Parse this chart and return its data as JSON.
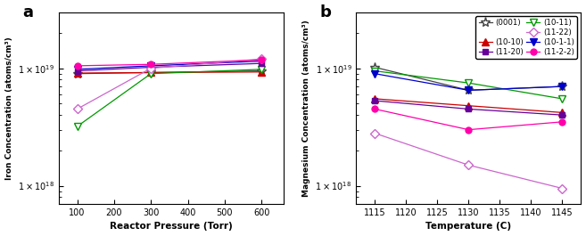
{
  "panel_a": {
    "xlabel": "Reactor Pressure (Torr)",
    "ylabel": "Iron Concentration (atoms/cm³)",
    "xdata": [
      100,
      300,
      600
    ],
    "series": [
      {
        "label": "(0001)",
        "color": "#444444",
        "marker": "*",
        "markersize": 8,
        "markerfacecolor": "white",
        "markeredgecolor": "#444444",
        "linestyle": "-",
        "y": [
          9e+18,
          9.2e+18,
          9.5e+18
        ]
      },
      {
        "label": "(10-10)",
        "color": "#cc0000",
        "marker": "^",
        "markersize": 6,
        "markerfacecolor": "#cc0000",
        "markeredgecolor": "#cc0000",
        "linestyle": "-",
        "y": [
          9.1e+18,
          9.2e+18,
          9.3e+18
        ]
      },
      {
        "label": "(10-11)",
        "color": "#009900",
        "marker": "v",
        "markersize": 6,
        "markerfacecolor": "white",
        "markeredgecolor": "#009900",
        "linestyle": "-",
        "y": [
          3.2e+18,
          9e+18,
          9.8e+18
        ]
      },
      {
        "label": "(10-1-1)",
        "color": "#0000cc",
        "marker": "v",
        "markersize": 6,
        "markerfacecolor": "#0000cc",
        "markeredgecolor": "#0000cc",
        "linestyle": "-",
        "y": [
          9.8e+18,
          1.05e+19,
          1.15e+19
        ]
      },
      {
        "label": "(11-20)",
        "color": "#660099",
        "marker": "s",
        "markersize": 5,
        "markerfacecolor": "#660099",
        "markeredgecolor": "#660099",
        "linestyle": "-",
        "y": [
          9.5e+18,
          1.02e+19,
          1.1e+19
        ]
      },
      {
        "label": "(11-22)",
        "color": "#cc66cc",
        "marker": "D",
        "markersize": 5,
        "markerfacecolor": "white",
        "markeredgecolor": "#cc66cc",
        "linestyle": "-",
        "y": [
          4.5e+18,
          1e+19,
          1.2e+19
        ]
      },
      {
        "label": "(11-2-2)",
        "color": "#ff00aa",
        "marker": "o",
        "markersize": 5,
        "markerfacecolor": "#ff00aa",
        "markeredgecolor": "#ff00aa",
        "linestyle": "-",
        "y": [
          1.05e+19,
          1.08e+19,
          1.18e+19
        ]
      }
    ]
  },
  "panel_b": {
    "xlabel": "Temperature (C)",
    "ylabel": "Magnesium Concentration (atoms/cm³)",
    "xdata": [
      1115,
      1130,
      1145
    ],
    "series": [
      {
        "label": "(0001)",
        "color": "#444444",
        "marker": "*",
        "markersize": 8,
        "markerfacecolor": "white",
        "markeredgecolor": "#444444",
        "linestyle": "-",
        "y": [
          1.02e+19,
          6.5e+18,
          7e+18
        ]
      },
      {
        "label": "(10-10)",
        "color": "#cc0000",
        "marker": "^",
        "markersize": 6,
        "markerfacecolor": "#cc0000",
        "markeredgecolor": "#cc0000",
        "linestyle": "-",
        "y": [
          5.5e+18,
          4.8e+18,
          4.2e+18
        ]
      },
      {
        "label": "(10-11)",
        "color": "#009900",
        "marker": "v",
        "markersize": 6,
        "markerfacecolor": "white",
        "markeredgecolor": "#009900",
        "linestyle": "-",
        "y": [
          9.5e+18,
          7.5e+18,
          5.5e+18
        ]
      },
      {
        "label": "(10-1-1)",
        "color": "#0000cc",
        "marker": "v",
        "markersize": 6,
        "markerfacecolor": "#0000cc",
        "markeredgecolor": "#0000cc",
        "linestyle": "-",
        "y": [
          9e+18,
          6.5e+18,
          7e+18
        ]
      },
      {
        "label": "(11-20)",
        "color": "#660099",
        "marker": "s",
        "markersize": 5,
        "markerfacecolor": "#660099",
        "markeredgecolor": "#660099",
        "linestyle": "-",
        "y": [
          5.3e+18,
          4.5e+18,
          4e+18
        ]
      },
      {
        "label": "(11-22)",
        "color": "#cc66cc",
        "marker": "D",
        "markersize": 5,
        "markerfacecolor": "white",
        "markeredgecolor": "#cc66cc",
        "linestyle": "-",
        "y": [
          2.8e+18,
          1.5e+18,
          9.5e+17
        ]
      },
      {
        "label": "(11-2-2)",
        "color": "#ff00aa",
        "marker": "o",
        "markersize": 5,
        "markerfacecolor": "#ff00aa",
        "markeredgecolor": "#ff00aa",
        "linestyle": "-",
        "y": [
          4.5e+18,
          3e+18,
          3.5e+18
        ]
      }
    ]
  },
  "panel_labels": [
    "a",
    "b"
  ],
  "ylim": [
    7e+17,
    3e+19
  ],
  "yticks": [
    1e+18,
    1e+19
  ],
  "legend_layout": [
    [
      "(0001)",
      null
    ],
    [
      "(10-10)",
      "(11-20)"
    ],
    [
      "(10-11)",
      "(11-22)"
    ],
    [
      "(10-1-1)",
      "(11-2-2)"
    ]
  ]
}
